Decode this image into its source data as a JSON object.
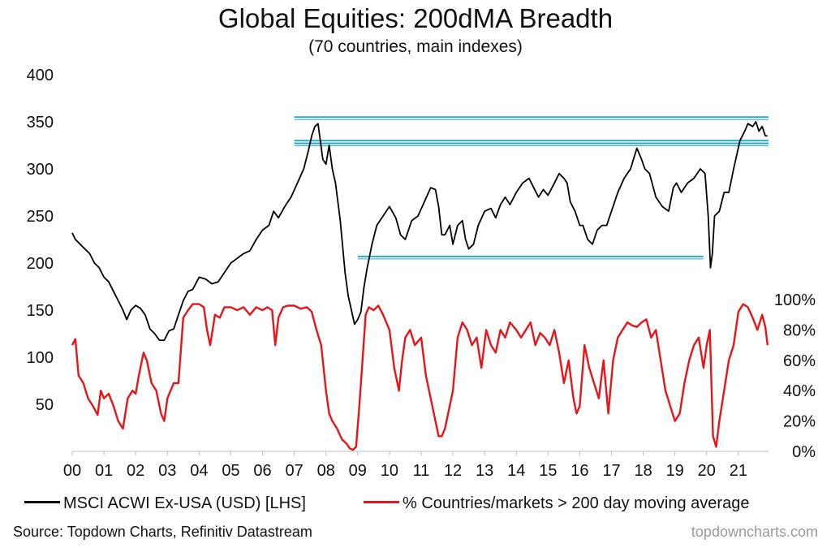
{
  "colors": {
    "lhs": "#000000",
    "rhs": "#e8141a",
    "levels": "#2aa9c9"
  },
  "chart_data": {
    "type": "line",
    "title": "Global Equities: 200dMA Breadth",
    "subtitle": "(70 countries, main indexes)",
    "x_tick_labels": [
      "00",
      "01",
      "02",
      "03",
      "04",
      "05",
      "06",
      "07",
      "08",
      "09",
      "10",
      "11",
      "12",
      "13",
      "14",
      "15",
      "16",
      "17",
      "18",
      "19",
      "20",
      "21"
    ],
    "x_range": [
      2000,
      2021.95
    ],
    "left_axis": {
      "ticks": [
        "50",
        "100",
        "150",
        "200",
        "250",
        "300",
        "350",
        "400"
      ],
      "ylim": [
        0,
        400
      ]
    },
    "right_axis": {
      "ticks": [
        "0%",
        "20%",
        "40%",
        "60%",
        "80%",
        "100%"
      ],
      "ylim": [
        0,
        100
      ]
    },
    "series": [
      {
        "name": "MSCI ACWI Ex-USA (USD) [LHS]",
        "axis": "left",
        "x": [
          2000.0,
          2000.1,
          2000.25,
          2000.4,
          2000.55,
          2000.7,
          2000.85,
          2001.0,
          2001.15,
          2001.3,
          2001.45,
          2001.6,
          2001.72,
          2001.85,
          2002.0,
          2002.15,
          2002.3,
          2002.45,
          2002.6,
          2002.75,
          2002.9,
          2003.05,
          2003.2,
          2003.35,
          2003.5,
          2003.65,
          2003.8,
          2004.0,
          2004.2,
          2004.4,
          2004.6,
          2004.8,
          2005.0,
          2005.2,
          2005.4,
          2005.6,
          2005.8,
          2006.0,
          2006.2,
          2006.35,
          2006.5,
          2006.7,
          2006.9,
          2007.1,
          2007.3,
          2007.45,
          2007.55,
          2007.65,
          2007.75,
          2007.9,
          2008.0,
          2008.1,
          2008.2,
          2008.3,
          2008.45,
          2008.6,
          2008.7,
          2008.8,
          2008.9,
          2009.0,
          2009.1,
          2009.2,
          2009.3,
          2009.45,
          2009.6,
          2009.8,
          2010.0,
          2010.2,
          2010.35,
          2010.5,
          2010.7,
          2010.9,
          2011.1,
          2011.3,
          2011.45,
          2011.55,
          2011.65,
          2011.75,
          2011.9,
          2012.0,
          2012.15,
          2012.3,
          2012.4,
          2012.5,
          2012.65,
          2012.8,
          2013.0,
          2013.2,
          2013.35,
          2013.5,
          2013.65,
          2013.8,
          2014.0,
          2014.2,
          2014.4,
          2014.55,
          2014.7,
          2014.85,
          2015.0,
          2015.2,
          2015.35,
          2015.5,
          2015.6,
          2015.7,
          2015.85,
          2016.0,
          2016.1,
          2016.25,
          2016.4,
          2016.55,
          2016.7,
          2016.85,
          2017.0,
          2017.2,
          2017.4,
          2017.6,
          2017.8,
          2017.95,
          2018.05,
          2018.2,
          2018.4,
          2018.6,
          2018.8,
          2018.95,
          2019.05,
          2019.2,
          2019.4,
          2019.6,
          2019.8,
          2019.95,
          2020.05,
          2020.12,
          2020.18,
          2020.25,
          2020.4,
          2020.55,
          2020.7,
          2020.85,
          2020.95,
          2021.05,
          2021.2,
          2021.3,
          2021.45,
          2021.55,
          2021.65,
          2021.75,
          2021.85,
          2021.92
        ],
        "values": [
          232,
          225,
          220,
          215,
          210,
          200,
          195,
          185,
          180,
          170,
          160,
          150,
          140,
          150,
          155,
          152,
          145,
          130,
          125,
          118,
          118,
          128,
          130,
          145,
          160,
          170,
          172,
          185,
          183,
          178,
          180,
          190,
          200,
          205,
          210,
          213,
          225,
          235,
          240,
          255,
          248,
          260,
          270,
          285,
          300,
          320,
          335,
          345,
          348,
          310,
          305,
          325,
          300,
          285,
          245,
          190,
          165,
          150,
          135,
          140,
          148,
          175,
          195,
          220,
          240,
          250,
          260,
          248,
          230,
          225,
          245,
          250,
          265,
          280,
          278,
          260,
          230,
          230,
          240,
          220,
          240,
          245,
          225,
          215,
          220,
          240,
          255,
          258,
          248,
          262,
          270,
          262,
          275,
          285,
          290,
          280,
          270,
          278,
          272,
          285,
          295,
          290,
          285,
          265,
          255,
          240,
          240,
          225,
          220,
          235,
          240,
          240,
          255,
          275,
          290,
          300,
          322,
          310,
          300,
          295,
          270,
          260,
          255,
          280,
          285,
          275,
          285,
          290,
          300,
          295,
          250,
          195,
          210,
          250,
          255,
          275,
          275,
          300,
          315,
          330,
          340,
          348,
          345,
          350,
          340,
          345,
          335,
          335
        ]
      },
      {
        "name": "% Countries/markets > 200 day moving average",
        "axis": "right",
        "x": [
          2000.0,
          2000.1,
          2000.2,
          2000.35,
          2000.5,
          2000.65,
          2000.8,
          2000.9,
          2001.0,
          2001.15,
          2001.3,
          2001.45,
          2001.6,
          2001.75,
          2001.9,
          2002.0,
          2002.1,
          2002.25,
          2002.35,
          2002.5,
          2002.65,
          2002.8,
          2002.9,
          2003.0,
          2003.1,
          2003.2,
          2003.35,
          2003.5,
          2003.65,
          2003.8,
          2004.0,
          2004.15,
          2004.25,
          2004.35,
          2004.5,
          2004.65,
          2004.8,
          2005.0,
          2005.2,
          2005.4,
          2005.6,
          2005.8,
          2006.0,
          2006.15,
          2006.3,
          2006.4,
          2006.5,
          2006.65,
          2006.8,
          2007.0,
          2007.2,
          2007.4,
          2007.55,
          2007.7,
          2007.85,
          2008.0,
          2008.1,
          2008.2,
          2008.35,
          2008.5,
          2008.65,
          2008.75,
          2008.85,
          2008.95,
          2009.05,
          2009.15,
          2009.25,
          2009.35,
          2009.5,
          2009.65,
          2009.8,
          2010.0,
          2010.15,
          2010.3,
          2010.4,
          2010.5,
          2010.65,
          2010.8,
          2011.0,
          2011.15,
          2011.3,
          2011.45,
          2011.55,
          2011.65,
          2011.75,
          2011.9,
          2012.0,
          2012.15,
          2012.3,
          2012.45,
          2012.6,
          2012.75,
          2012.9,
          2013.05,
          2013.2,
          2013.35,
          2013.5,
          2013.65,
          2013.8,
          2014.0,
          2014.15,
          2014.3,
          2014.45,
          2014.6,
          2014.75,
          2014.9,
          2015.05,
          2015.2,
          2015.35,
          2015.5,
          2015.65,
          2015.8,
          2015.9,
          2016.0,
          2016.15,
          2016.3,
          2016.45,
          2016.6,
          2016.75,
          2016.9,
          2017.05,
          2017.2,
          2017.35,
          2017.5,
          2017.65,
          2017.8,
          2017.95,
          2018.1,
          2018.25,
          2018.4,
          2018.55,
          2018.7,
          2018.85,
          2019.0,
          2019.15,
          2019.3,
          2019.45,
          2019.6,
          2019.75,
          2019.9,
          2020.0,
          2020.1,
          2020.2,
          2020.3,
          2020.4,
          2020.55,
          2020.7,
          2020.85,
          2021.0,
          2021.15,
          2021.3,
          2021.45,
          2021.6,
          2021.75,
          2021.85,
          2021.92
        ],
        "values": [
          70,
          74,
          50,
          45,
          35,
          30,
          24,
          40,
          35,
          38,
          30,
          20,
          15,
          35,
          40,
          38,
          50,
          65,
          60,
          45,
          40,
          25,
          20,
          35,
          40,
          45,
          45,
          88,
          93,
          97,
          97,
          95,
          80,
          70,
          90,
          88,
          95,
          95,
          93,
          95,
          90,
          95,
          93,
          95,
          93,
          70,
          88,
          95,
          96,
          96,
          94,
          95,
          92,
          80,
          70,
          40,
          25,
          20,
          15,
          8,
          5,
          2,
          1,
          3,
          30,
          60,
          90,
          95,
          93,
          96,
          90,
          80,
          55,
          40,
          60,
          75,
          80,
          70,
          75,
          50,
          35,
          20,
          10,
          10,
          15,
          30,
          40,
          75,
          85,
          80,
          70,
          75,
          55,
          80,
          70,
          65,
          80,
          75,
          85,
          80,
          75,
          80,
          85,
          70,
          78,
          75,
          70,
          80,
          65,
          45,
          60,
          35,
          25,
          30,
          70,
          55,
          45,
          35,
          60,
          25,
          60,
          75,
          80,
          85,
          83,
          82,
          85,
          87,
          75,
          80,
          60,
          40,
          30,
          20,
          25,
          45,
          60,
          70,
          75,
          55,
          70,
          80,
          10,
          3,
          20,
          40,
          60,
          70,
          92,
          97,
          95,
          88,
          80,
          90,
          82,
          70
        ]
      }
    ],
    "horizontal_levels": [
      355,
      330,
      327,
      207
    ],
    "legend_position": "bottom"
  },
  "footer": {
    "source": "Source: Topdown Charts, Refinitiv Datastream",
    "watermark": "topdowncharts.com"
  }
}
